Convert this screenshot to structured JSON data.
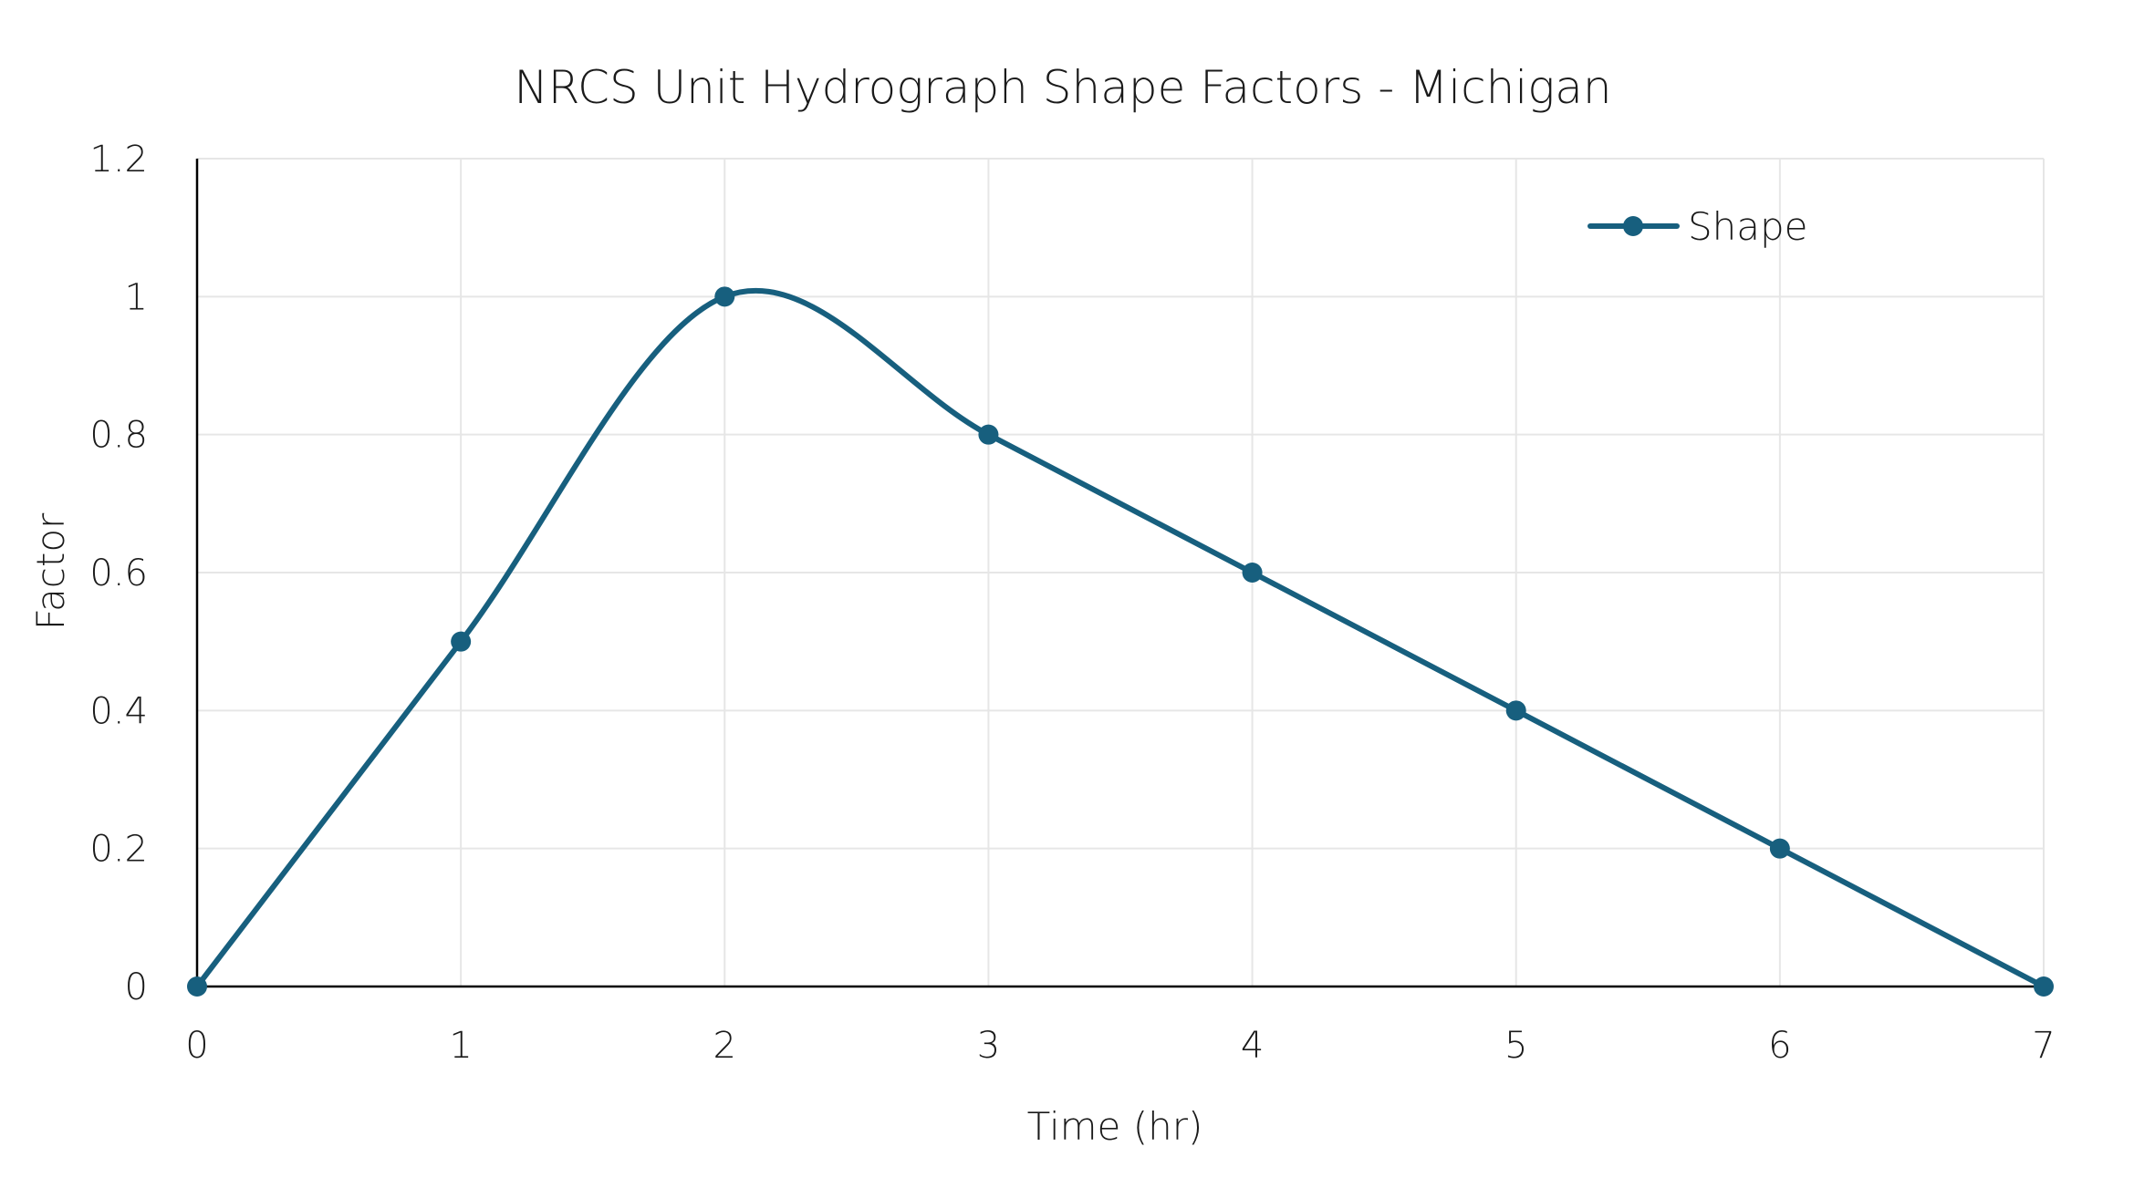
{
  "chart_data": {
    "type": "line",
    "title": "NRCS Unit Hydrograph Shape Factors - Michigan",
    "xlabel": "Time (hr)",
    "ylabel": "Factor",
    "xlim": [
      0,
      7
    ],
    "ylim": [
      0,
      1.2
    ],
    "x_ticks": [
      "0",
      "1",
      "2",
      "3",
      "4",
      "5",
      "6",
      "7"
    ],
    "y_ticks": [
      "0",
      "0.2",
      "0.4",
      "0.6",
      "0.8",
      "1",
      "1.2"
    ],
    "grid": true,
    "legend_position": "top-right",
    "smoothed": true,
    "series": [
      {
        "name": "Shape",
        "color": "#175f7e",
        "x": [
          0,
          1,
          2,
          3,
          4,
          5,
          6,
          7
        ],
        "y": [
          0,
          0.5,
          1,
          0.8,
          0.6,
          0.4,
          0.2,
          0
        ]
      }
    ]
  }
}
